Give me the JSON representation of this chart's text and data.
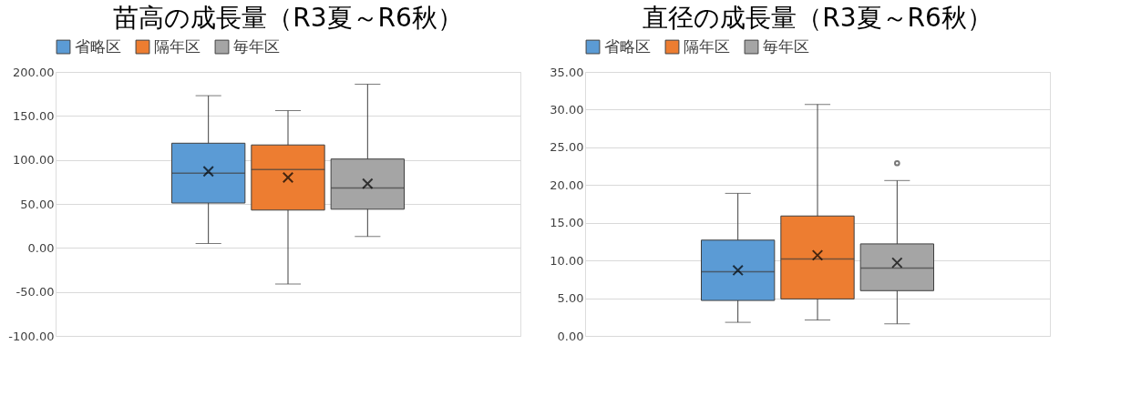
{
  "chart_data": [
    {
      "type": "box",
      "title": "苗高の成長量（R3夏～R6秋）",
      "categories": [
        null
      ],
      "legend": "top",
      "grid": "y",
      "ylim": [
        -100,
        200
      ],
      "yticks": [
        {
          "value": -100,
          "label": "-100.00"
        },
        {
          "value": -50,
          "label": "-50.00"
        },
        {
          "value": 0,
          "label": "0.00"
        },
        {
          "value": 50,
          "label": "50.00"
        },
        {
          "value": 100,
          "label": "100.00"
        },
        {
          "value": 150,
          "label": "150.00"
        },
        {
          "value": 200,
          "label": "200.00"
        }
      ],
      "series": [
        {
          "name": "省略区",
          "color": "#5b9bd5",
          "boxes": [
            {
              "low": 5,
              "q1": 51,
              "median": 85,
              "q3": 119,
              "high": 173,
              "mean": 87
            }
          ]
        },
        {
          "name": "隔年区",
          "color": "#ed7d31",
          "boxes": [
            {
              "low": -41,
              "q1": 43,
              "median": 89,
              "q3": 117,
              "high": 156,
              "mean": 80
            }
          ]
        },
        {
          "name": "毎年区",
          "color": "#a5a5a5",
          "boxes": [
            {
              "low": 13,
              "q1": 44,
              "median": 68,
              "q3": 101,
              "high": 186,
              "mean": 73
            }
          ]
        }
      ]
    },
    {
      "type": "box",
      "title": "直径の成長量（R3夏～R6秋）",
      "categories": [
        null
      ],
      "legend": "top",
      "grid": "y",
      "ylim": [
        0,
        35
      ],
      "yticks": [
        {
          "value": 0,
          "label": "0.00"
        },
        {
          "value": 5,
          "label": "5.00"
        },
        {
          "value": 10,
          "label": "10.00"
        },
        {
          "value": 15,
          "label": "15.00"
        },
        {
          "value": 20,
          "label": "20.00"
        },
        {
          "value": 25,
          "label": "25.00"
        },
        {
          "value": 30,
          "label": "30.00"
        },
        {
          "value": 35,
          "label": "35.00"
        }
      ],
      "series": [
        {
          "name": "省略区",
          "color": "#5b9bd5",
          "boxes": [
            {
              "low": 1.8,
              "q1": 4.7,
              "median": 8.5,
              "q3": 12.7,
              "high": 18.9,
              "mean": 8.7
            }
          ]
        },
        {
          "name": "隔年区",
          "color": "#ed7d31",
          "boxes": [
            {
              "low": 2.1,
              "q1": 4.9,
              "median": 10.2,
              "q3": 15.9,
              "high": 30.7,
              "mean": 10.7
            }
          ]
        },
        {
          "name": "毎年区",
          "color": "#a5a5a5",
          "boxes": [
            {
              "low": 1.6,
              "q1": 6.0,
              "median": 9.0,
              "q3": 12.2,
              "high": 20.6,
              "mean": 9.7,
              "outliers": [
                22.9
              ]
            }
          ]
        }
      ]
    }
  ]
}
